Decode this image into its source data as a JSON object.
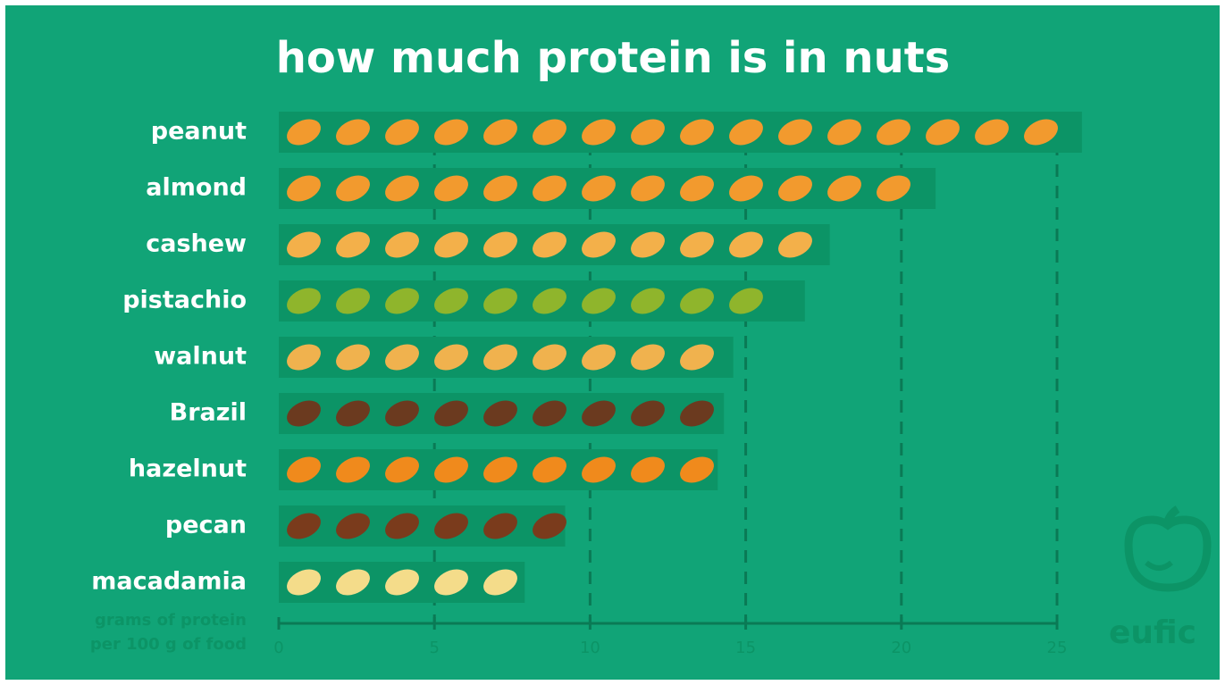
{
  "chart_data": {
    "type": "bar",
    "orientation": "horizontal",
    "title": "how much protein is in nuts",
    "xlabel": [
      "grams of protein",
      "per 100 g of food"
    ],
    "categories": [
      "peanut",
      "almond",
      "cashew",
      "pistachio",
      "walnut",
      "Brazil",
      "hazelnut",
      "pecan",
      "macadamia"
    ],
    "values": [
      25.8,
      21.1,
      17.7,
      16.9,
      14.6,
      14.3,
      14.1,
      9.2,
      7.9
    ],
    "bar_color": "#0c9466",
    "icon_colors": [
      "#f29a2e",
      "#f29a2e",
      "#f3b04a",
      "#8fb52c",
      "#f0b24e",
      "#6b3a1f",
      "#f08a1c",
      "#7a3b1c",
      "#f4dc8a"
    ],
    "xlim": [
      0,
      25
    ],
    "xticks": [
      0,
      5,
      10,
      15,
      20,
      25
    ],
    "grid": true,
    "logo": "eufic"
  }
}
